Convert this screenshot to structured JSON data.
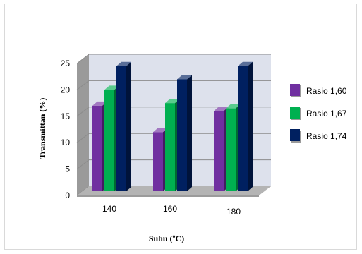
{
  "chart_data": {
    "type": "bar",
    "style": "3d-clustered-column",
    "categories": [
      "140",
      "160",
      "180"
    ],
    "series": [
      {
        "name": "Rasio 1,60",
        "values": [
          17,
          12,
          16
        ],
        "color": "#7030a0"
      },
      {
        "name": "Rasio 1,67",
        "values": [
          20,
          17.5,
          16.5
        ],
        "color": "#00b050"
      },
      {
        "name": "Rasio 1,74",
        "values": [
          24.5,
          22,
          24.5
        ],
        "color": "#002060"
      }
    ],
    "xlabel": "Suhu (ºC)",
    "ylabel": "Transmittan (%)",
    "ylim": [
      0,
      25
    ],
    "yticks": [
      "0",
      "5",
      "10",
      "15",
      "20",
      "25"
    ],
    "grid": true,
    "legend_position": "right",
    "wall_color": "#dde1ec",
    "floor_color": "#b4b4b4"
  }
}
